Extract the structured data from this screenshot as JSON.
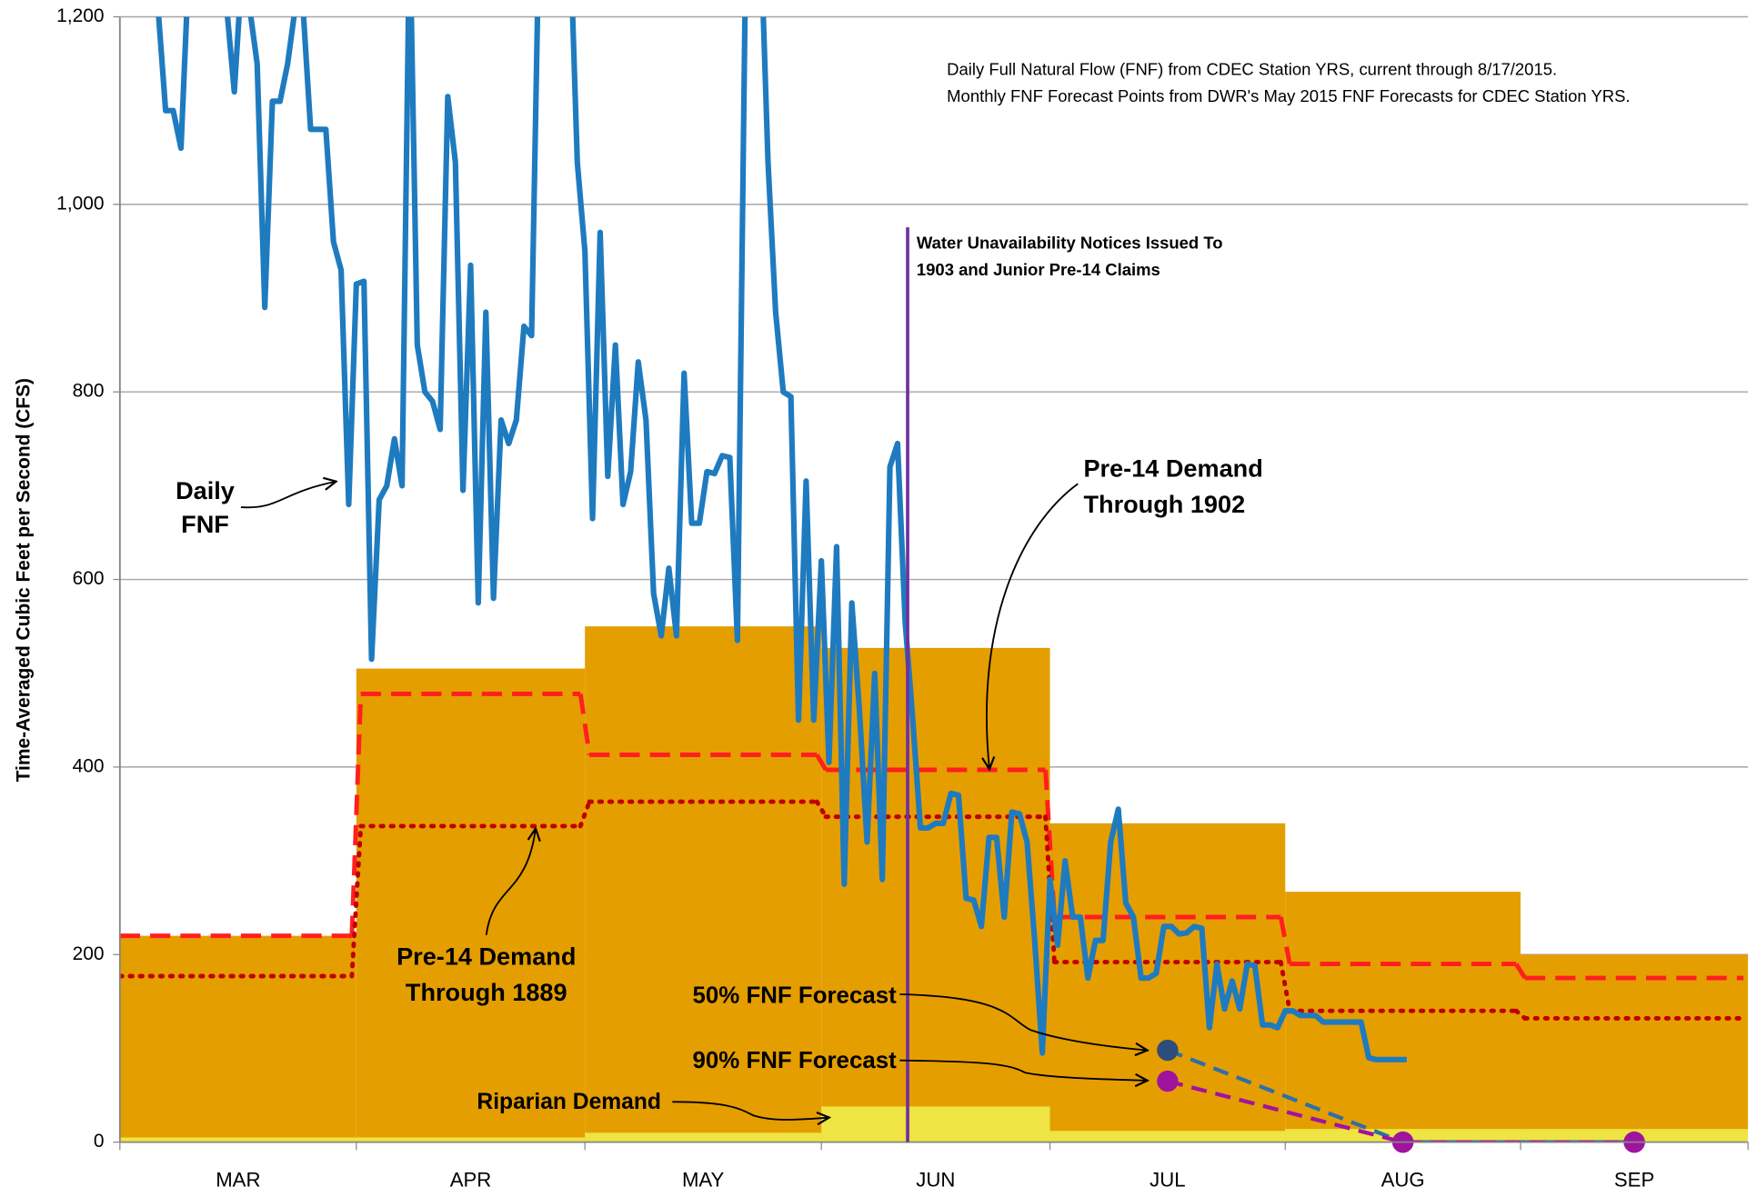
{
  "chart_data": {
    "type": "line",
    "ylabel": "Time-Averaged Cubic Feet per Second (CFS)",
    "categories": [
      "MAR",
      "APR",
      "MAY",
      "JUN",
      "JUL",
      "AUG",
      "SEP"
    ],
    "ylim": [
      0,
      1200
    ],
    "yticks": [
      0,
      200,
      400,
      600,
      800,
      {
        "value": 1000,
        "label": "1,000"
      },
      {
        "value": 1200,
        "label": "1,200"
      }
    ],
    "grid": true,
    "notes": [
      "Daily Full Natural Flow (FNF) from CDEC Station YRS, current through 8/17/2015.",
      "Monthly FNF Forecast Points from DWR's May 2015 FNF Forecasts for CDEC Station YRS."
    ],
    "series": [
      {
        "kind": "block",
        "color": "#e59e00",
        "values": [
          220,
          505,
          550,
          527,
          340,
          267,
          200
        ]
      },
      {
        "kind": "block",
        "color": "#eee443",
        "values": [
          5,
          5,
          10,
          38,
          12,
          14,
          14
        ]
      },
      {
        "kind": "step",
        "style": "dashed",
        "color": "#ff1f1f",
        "values": [
          220,
          478,
          413,
          397,
          240,
          190,
          175
        ]
      },
      {
        "kind": "step",
        "style": "dotted",
        "color": "#c00000",
        "values": [
          177,
          337,
          363,
          347,
          192,
          140,
          132
        ]
      },
      {
        "kind": "forecast",
        "color": "#2e4d7b",
        "line_color": "#2e6fa8",
        "values": [
          null,
          null,
          null,
          null,
          98,
          0,
          0
        ]
      },
      {
        "kind": "forecast",
        "color": "#a0139f",
        "line_color": "#a0139f",
        "values": [
          null,
          null,
          null,
          null,
          65,
          0,
          0
        ]
      }
    ],
    "daily": {
      "color": "#1f7bbf",
      "values": [
        1300,
        1300,
        1300,
        1300,
        1300,
        1210,
        1100,
        1100,
        1060,
        1250,
        1300,
        1350,
        1350,
        1300,
        1210,
        1120,
        1250,
        1210,
        1150,
        890,
        1110,
        1110,
        1150,
        1210,
        1210,
        1080,
        1080,
        1080,
        960,
        930,
        680,
        915,
        918,
        515,
        685,
        700,
        750,
        700,
        1300,
        850,
        800,
        790,
        760,
        1115,
        1045,
        695,
        935,
        575,
        885,
        580,
        770,
        745,
        770,
        870,
        860,
        1300,
        1300,
        1350,
        1350,
        1300,
        1045,
        950,
        665,
        970,
        710,
        850,
        680,
        715,
        832,
        770,
        585,
        540,
        612,
        540,
        820,
        660,
        660,
        715,
        713,
        732,
        730,
        535,
        1210,
        1300,
        1300,
        1045,
        885,
        800,
        795,
        450,
        705,
        450,
        620,
        405,
        635,
        275,
        575,
        460,
        320,
        500,
        280,
        720,
        745,
        555,
        450,
        335,
        335,
        340,
        340,
        372,
        370,
        260,
        258,
        230,
        325,
        325,
        240,
        352,
        350,
        320,
        215,
        95,
        280,
        210,
        300,
        240,
        240,
        175,
        215,
        215,
        320,
        355,
        255,
        240,
        175,
        175,
        180,
        230,
        230,
        222,
        223,
        230,
        228,
        122,
        190,
        142,
        172,
        142,
        190,
        188,
        125,
        125,
        122,
        140,
        140,
        135,
        135,
        135,
        128,
        128,
        128,
        128,
        128,
        128,
        90,
        88,
        88,
        88,
        88,
        88
      ]
    },
    "annotations": [
      {
        "lines": [
          "Water Unavailability Notices Issued To",
          "1903 and Junior Pre-14 Claims"
        ]
      },
      {
        "lines": [
          "Daily",
          "FNF"
        ]
      },
      {
        "lines": [
          "Pre-14 Demand",
          "Through 1902"
        ]
      },
      {
        "lines": [
          "Pre-14 Demand",
          "Through 1889"
        ]
      },
      {
        "lines": [
          "50% FNF Forecast"
        ]
      },
      {
        "lines": [
          "90% FNF Forecast"
        ]
      },
      {
        "lines": [
          "Riparian Demand"
        ]
      }
    ]
  }
}
